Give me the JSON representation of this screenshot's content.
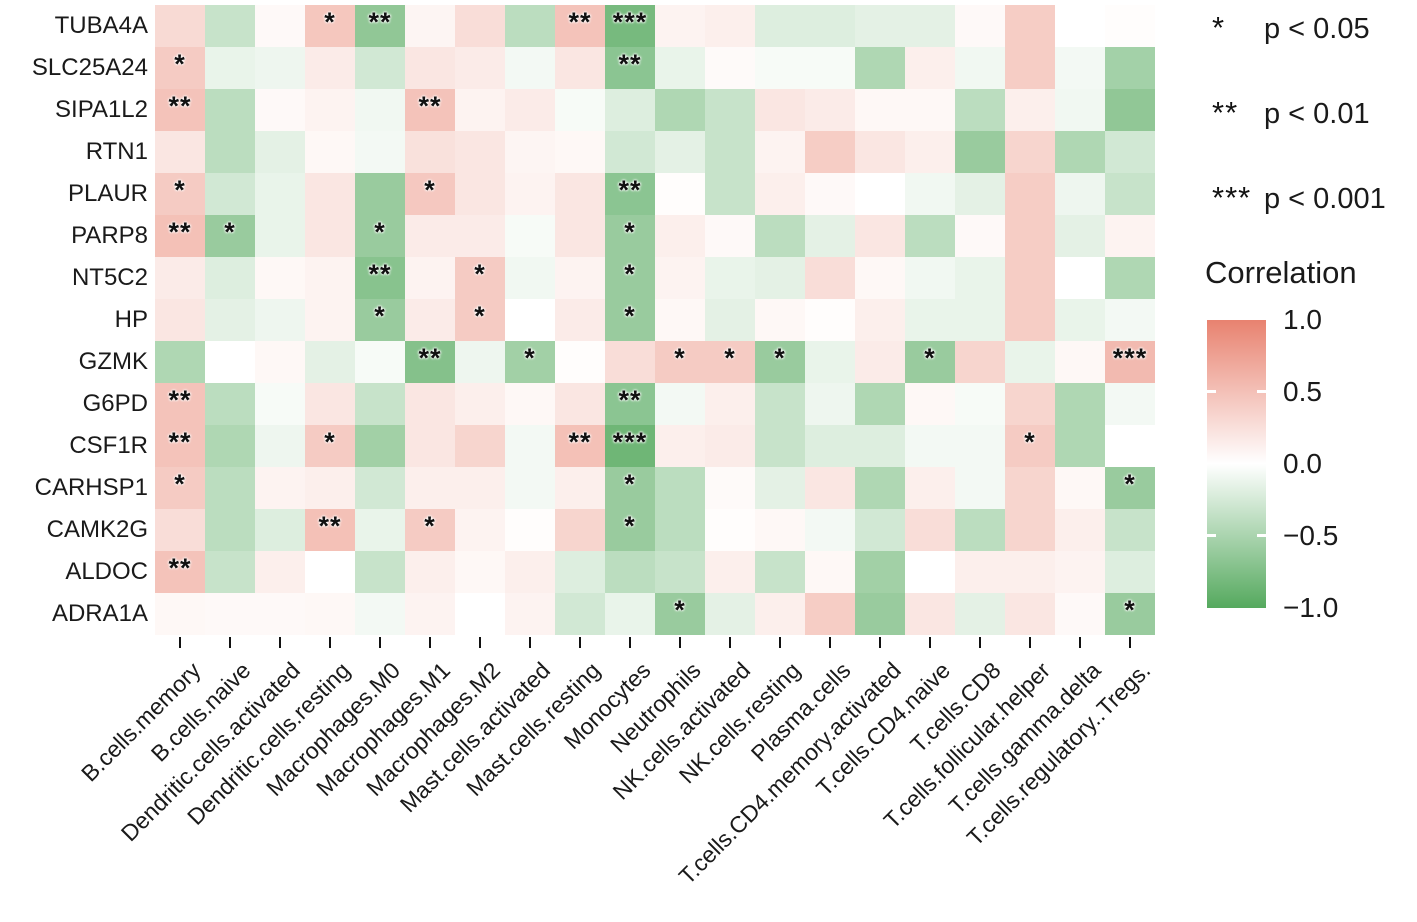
{
  "figure": {
    "background": "#ffffff"
  },
  "chart_data": {
    "type": "heatmap",
    "legend_title": "Correlation",
    "rows": [
      "TUBA4A",
      "SLC25A24",
      "SIPA1L2",
      "RTN1",
      "PLAUR",
      "PARP8",
      "NT5C2",
      "HP",
      "GZMK",
      "G6PD",
      "CSF1R",
      "CARHSP1",
      "CAMK2G",
      "ALDOC",
      "ADRA1A"
    ],
    "columns": [
      "B.cells.memory",
      "B.cells.naive",
      "Dendritic.cells.activated",
      "Dendritic.cells.resting",
      "Macrophages.M0",
      "Macrophages.M1",
      "Macrophages.M2",
      "Mast.cells.activated",
      "Mast.cells.resting",
      "Monocytes",
      "Neutrophils",
      "NK.cells.activated",
      "NK.cells.resting",
      "Plasma.cells",
      "T.cells.CD4.memory.activated",
      "T.cells.CD4.naive",
      "T.cells.CD8",
      "T.cells.follicular.helper",
      "T.cells.gamma.delta",
      "T.cells.regulatory..Tregs."
    ],
    "correlation": [
      [
        0.3,
        -0.33,
        0.05,
        0.45,
        -0.65,
        0.08,
        0.27,
        -0.4,
        0.48,
        -0.8,
        0.1,
        0.13,
        -0.2,
        -0.2,
        -0.16,
        -0.16,
        0.05,
        0.4,
        0.0,
        0.02
      ],
      [
        0.42,
        -0.13,
        -0.1,
        0.16,
        -0.27,
        0.2,
        0.16,
        -0.07,
        0.2,
        -0.68,
        -0.13,
        0.04,
        -0.05,
        -0.05,
        -0.47,
        0.13,
        -0.08,
        0.4,
        -0.07,
        -0.54
      ],
      [
        0.48,
        -0.4,
        0.05,
        0.1,
        -0.08,
        0.48,
        0.1,
        0.16,
        -0.05,
        -0.2,
        -0.47,
        -0.33,
        0.2,
        0.16,
        0.06,
        0.06,
        -0.4,
        0.13,
        -0.08,
        -0.65
      ],
      [
        0.2,
        -0.4,
        -0.16,
        0.06,
        -0.07,
        0.24,
        0.2,
        0.08,
        0.06,
        -0.27,
        -0.16,
        -0.33,
        0.1,
        0.4,
        0.2,
        0.13,
        -0.6,
        0.34,
        -0.47,
        -0.27
      ],
      [
        0.42,
        -0.27,
        -0.13,
        0.2,
        -0.6,
        0.44,
        0.2,
        0.1,
        0.2,
        -0.68,
        0.02,
        -0.33,
        0.13,
        0.05,
        0.0,
        -0.08,
        -0.16,
        0.4,
        -0.1,
        -0.33
      ],
      [
        0.5,
        -0.6,
        -0.13,
        0.2,
        -0.6,
        0.16,
        0.16,
        -0.05,
        0.2,
        -0.6,
        0.13,
        0.05,
        -0.4,
        -0.16,
        0.2,
        -0.4,
        0.05,
        0.4,
        -0.16,
        0.1
      ],
      [
        0.16,
        -0.2,
        0.06,
        0.1,
        -0.7,
        0.1,
        0.42,
        -0.08,
        0.1,
        -0.6,
        0.1,
        -0.13,
        -0.16,
        0.27,
        0.06,
        -0.08,
        -0.13,
        0.4,
        0.0,
        -0.47
      ],
      [
        0.2,
        -0.16,
        -0.1,
        0.1,
        -0.6,
        0.16,
        0.42,
        0.0,
        0.16,
        -0.6,
        0.06,
        -0.16,
        0.06,
        0.02,
        0.13,
        -0.13,
        -0.13,
        0.4,
        -0.13,
        -0.07
      ],
      [
        -0.47,
        0.0,
        0.06,
        -0.16,
        -0.05,
        -0.72,
        -0.1,
        -0.55,
        0.02,
        0.27,
        0.42,
        0.42,
        -0.6,
        -0.13,
        0.16,
        -0.6,
        0.34,
        -0.13,
        0.06,
        0.55
      ],
      [
        0.48,
        -0.4,
        -0.05,
        0.2,
        -0.33,
        0.2,
        0.13,
        0.06,
        0.2,
        -0.68,
        -0.07,
        0.13,
        -0.33,
        -0.1,
        -0.47,
        0.06,
        -0.05,
        0.34,
        -0.47,
        -0.07
      ],
      [
        0.48,
        -0.47,
        -0.1,
        0.42,
        -0.55,
        0.2,
        0.34,
        -0.07,
        0.5,
        -0.85,
        0.13,
        0.16,
        -0.33,
        -0.2,
        -0.2,
        -0.07,
        -0.07,
        0.42,
        -0.47,
        0.0
      ],
      [
        0.42,
        -0.4,
        0.1,
        0.13,
        -0.27,
        0.13,
        0.13,
        -0.07,
        0.13,
        -0.6,
        -0.4,
        0.04,
        -0.16,
        0.2,
        -0.47,
        0.13,
        -0.07,
        0.34,
        0.06,
        -0.6
      ],
      [
        0.27,
        -0.4,
        -0.2,
        0.5,
        -0.13,
        0.42,
        0.1,
        0.02,
        0.34,
        -0.6,
        -0.4,
        0.02,
        0.06,
        -0.07,
        -0.27,
        0.27,
        -0.4,
        0.34,
        0.13,
        -0.33
      ],
      [
        0.48,
        -0.33,
        0.13,
        0.0,
        -0.33,
        0.13,
        0.06,
        0.13,
        -0.2,
        -0.4,
        -0.33,
        0.13,
        -0.33,
        0.06,
        -0.55,
        0.0,
        0.13,
        0.13,
        0.1,
        -0.2
      ],
      [
        0.06,
        0.05,
        0.05,
        0.06,
        -0.07,
        0.1,
        0.0,
        0.1,
        -0.27,
        -0.13,
        -0.6,
        -0.16,
        0.13,
        0.4,
        -0.6,
        0.2,
        -0.16,
        0.2,
        0.05,
        -0.6
      ]
    ],
    "significance": [
      [
        "",
        "",
        "",
        "*",
        "**",
        "",
        "",
        "",
        "**",
        "***",
        "",
        "",
        "",
        "",
        "",
        "",
        "",
        "",
        "",
        ""
      ],
      [
        "*",
        "",
        "",
        "",
        "",
        "",
        "",
        "",
        "",
        "**",
        "",
        "",
        "",
        "",
        "",
        "",
        "",
        "",
        "",
        ""
      ],
      [
        "**",
        "",
        "",
        "",
        "",
        "**",
        "",
        "",
        "",
        "",
        "",
        "",
        "",
        "",
        "",
        "",
        "",
        "",
        "",
        ""
      ],
      [
        "",
        "",
        "",
        "",
        "",
        "",
        "",
        "",
        "",
        "",
        "",
        "",
        "",
        "",
        "",
        "",
        "",
        "",
        "",
        ""
      ],
      [
        "*",
        "",
        "",
        "",
        "",
        "*",
        "",
        "",
        "",
        "**",
        "",
        "",
        "",
        "",
        "",
        "",
        "",
        "",
        "",
        ""
      ],
      [
        "**",
        "*",
        "",
        "",
        "*",
        "",
        "",
        "",
        "",
        "*",
        "",
        "",
        "",
        "",
        "",
        "",
        "",
        "",
        "",
        ""
      ],
      [
        "",
        "",
        "",
        "",
        "**",
        "",
        "*",
        "",
        "",
        "*",
        "",
        "",
        "",
        "",
        "",
        "",
        "",
        "",
        "",
        ""
      ],
      [
        "",
        "",
        "",
        "",
        "*",
        "",
        "*",
        "",
        "",
        "*",
        "",
        "",
        "",
        "",
        "",
        "",
        "",
        "",
        "",
        ""
      ],
      [
        "",
        "",
        "",
        "",
        "",
        "**",
        "",
        "*",
        "",
        "",
        "*",
        "*",
        "*",
        "",
        "",
        "*",
        "",
        "",
        "",
        "***"
      ],
      [
        "**",
        "",
        "",
        "",
        "",
        "",
        "",
        "",
        "",
        "**",
        "",
        "",
        "",
        "",
        "",
        "",
        "",
        "",
        "",
        ""
      ],
      [
        "**",
        "",
        "",
        "*",
        "",
        "",
        "",
        "",
        "**",
        "***",
        "",
        "",
        "",
        "",
        "",
        "",
        "",
        "*",
        "",
        ""
      ],
      [
        "*",
        "",
        "",
        "",
        "",
        "",
        "",
        "",
        "",
        "*",
        "",
        "",
        "",
        "",
        "",
        "",
        "",
        "",
        "",
        "*"
      ],
      [
        "",
        "",
        "",
        "**",
        "",
        "*",
        "",
        "",
        "",
        "*",
        "",
        "",
        "",
        "",
        "",
        "",
        "",
        "",
        "",
        ""
      ],
      [
        "**",
        "",
        "",
        "",
        "",
        "",
        "",
        "",
        "",
        "",
        "",
        "",
        "",
        "",
        "",
        "",
        "",
        "",
        "",
        ""
      ],
      [
        "",
        "",
        "",
        "",
        "",
        "",
        "",
        "",
        "",
        "",
        "*",
        "",
        "",
        "",
        "",
        "",
        "",
        "",
        "",
        "*"
      ]
    ],
    "significance_legend": [
      {
        "symbol": "*",
        "label": "p < 0.05"
      },
      {
        "symbol": "**",
        "label": "p < 0.01"
      },
      {
        "symbol": "***",
        "label": "p < 0.001"
      }
    ],
    "colorbar_ticks": [
      "1.0",
      "0.5",
      "0.0",
      "−0.5",
      "−1.0"
    ],
    "color_scale": {
      "positive_end": "#E8826F",
      "zero": "#FFFFFF",
      "negative_end": "#55A95E",
      "domain_min": -1.0,
      "domain_max": 1.0
    },
    "marker_color": "#111111",
    "label_color": "#1a1a1a"
  }
}
